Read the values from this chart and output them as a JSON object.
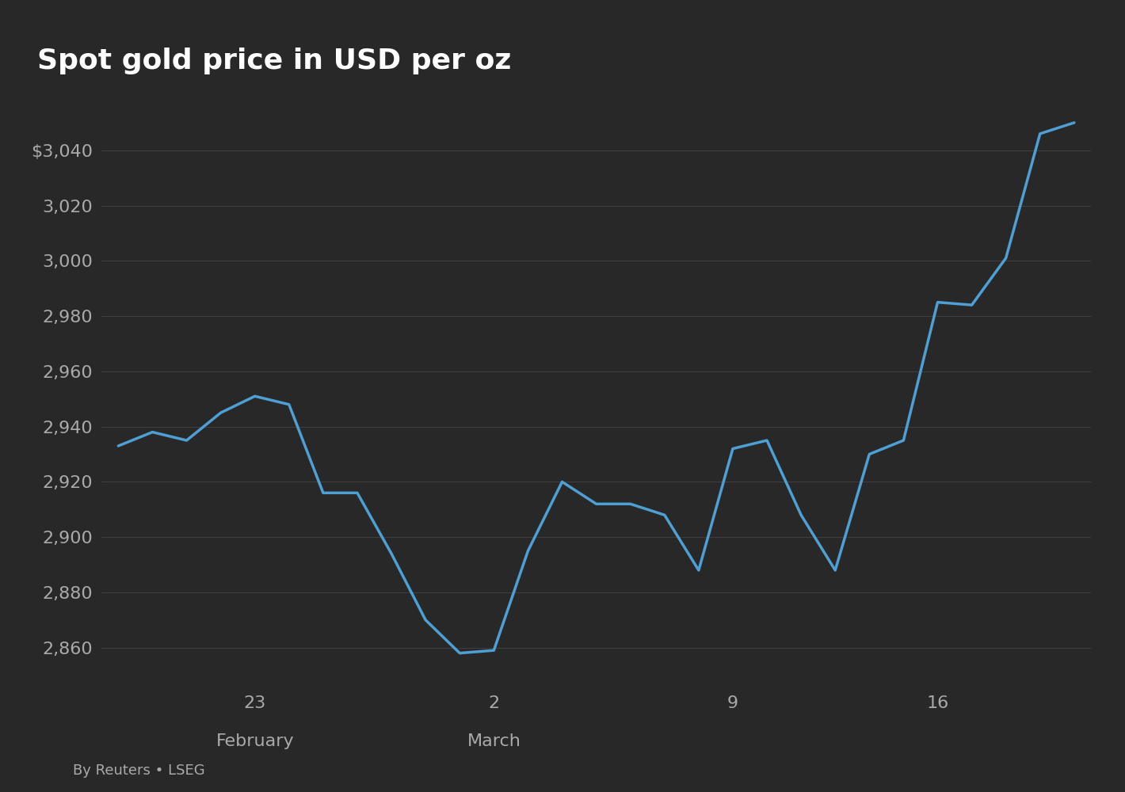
{
  "title": "Spot gold price in USD per oz",
  "footer": "By Reuters • LSEG",
  "background_color": "#282828",
  "line_color": "#4e9fd4",
  "grid_color": "#404040",
  "text_color": "#aaaaaa",
  "title_color": "#ffffff",
  "line_width": 2.5,
  "ylim": [
    2845,
    3060
  ],
  "yticks": [
    2860,
    2880,
    2900,
    2920,
    2940,
    2960,
    2980,
    3000,
    3020,
    3040
  ],
  "y_first_label": "$3,040",
  "x_positions": [
    0,
    1,
    2,
    3,
    4,
    5,
    6,
    7,
    8,
    9,
    10,
    11,
    12,
    13,
    14,
    15,
    16,
    17,
    18,
    19,
    20,
    21,
    22,
    23,
    24,
    25,
    26,
    27,
    28
  ],
  "y_values": [
    2933,
    2938,
    2935,
    2945,
    2951,
    2948,
    2916,
    2916,
    2894,
    2870,
    2858,
    2859,
    2895,
    2920,
    2912,
    2912,
    2908,
    2888,
    2932,
    2935,
    2908,
    2888,
    2930,
    2935,
    2985,
    2984,
    3001,
    3046,
    3050
  ],
  "xtick_positions": [
    4,
    11,
    18,
    24
  ],
  "xtick_labels": [
    "23",
    "2",
    "9",
    "16"
  ],
  "xtick_month_positions": [
    4,
    11
  ],
  "xtick_month_labels": [
    "February",
    "March"
  ]
}
